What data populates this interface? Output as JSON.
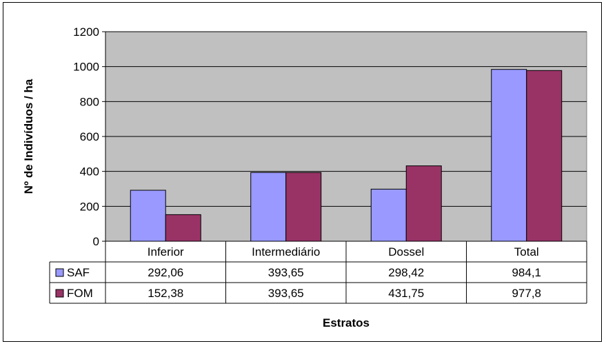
{
  "chart_data": {
    "type": "bar",
    "categories": [
      "Inferior",
      "Intermediário",
      "Dossel",
      "Total"
    ],
    "series": [
      {
        "name": "SAF",
        "values": [
          292.06,
          393.65,
          298.42,
          984.1
        ],
        "labels": [
          "292,06",
          "393,65",
          "298,42",
          "984,1"
        ],
        "color": "#9999ff"
      },
      {
        "name": "FOM",
        "values": [
          152.38,
          393.65,
          431.75,
          977.8
        ],
        "labels": [
          "152,38",
          "393,65",
          "431,75",
          "977,8"
        ],
        "color": "#993366"
      }
    ],
    "xlabel": "Estratos",
    "ylabel": "Nº de Indivíduos / ha",
    "ylim": [
      0,
      1200
    ],
    "yticks": [
      "0",
      "200",
      "400",
      "600",
      "800",
      "1000",
      "1200"
    ],
    "grid": true,
    "plot_background": "#c0c0c0",
    "data_table": true
  }
}
